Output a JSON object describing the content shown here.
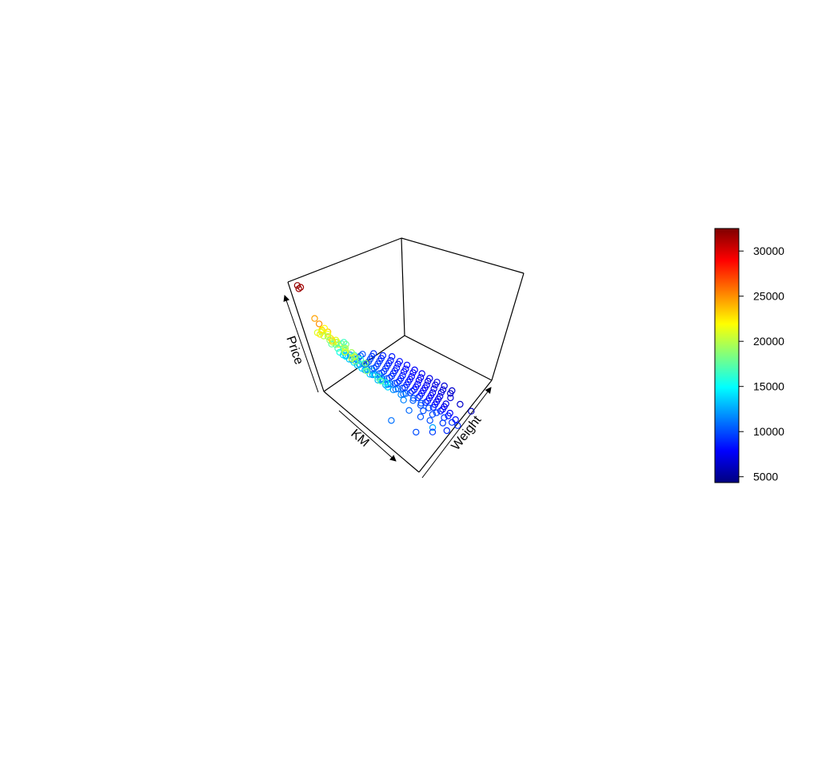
{
  "chart_data": {
    "type": "scatter",
    "projection": "3d-box",
    "axes": {
      "x": {
        "label": "KM"
      },
      "y": {
        "label": "Weight"
      },
      "z": {
        "label": "Price"
      }
    },
    "colorbar": {
      "palette": "jet",
      "colors": [
        "#00007f",
        "#0000ff",
        "#007fff",
        "#00ffff",
        "#7fff7f",
        "#ffff00",
        "#ff7f00",
        "#ff0000",
        "#7f0000"
      ],
      "range": [
        4350,
        32500
      ],
      "ticks": [
        5000,
        10000,
        15000,
        20000,
        25000,
        30000
      ],
      "tick_labels": [
        "5000",
        "10000",
        "15000",
        "20000",
        "25000",
        "30000"
      ],
      "placement": "right"
    },
    "points": [
      [
        0.05,
        0.05,
        0.98
      ],
      [
        0.06,
        0.07,
        0.96
      ],
      [
        0.07,
        0.04,
        0.97
      ],
      [
        0.1,
        0.08,
        0.7
      ],
      [
        0.14,
        0.08,
        0.68
      ],
      [
        0.18,
        0.06,
        0.66
      ],
      [
        0.2,
        0.1,
        0.64
      ],
      [
        0.24,
        0.08,
        0.62
      ],
      [
        0.12,
        0.1,
        0.6
      ],
      [
        0.16,
        0.12,
        0.58
      ],
      [
        0.22,
        0.14,
        0.56
      ],
      [
        0.26,
        0.12,
        0.58
      ],
      [
        0.3,
        0.1,
        0.6
      ],
      [
        0.08,
        0.12,
        0.54
      ],
      [
        0.12,
        0.14,
        0.52
      ],
      [
        0.18,
        0.16,
        0.5
      ],
      [
        0.24,
        0.18,
        0.48
      ],
      [
        0.28,
        0.16,
        0.5
      ],
      [
        0.34,
        0.2,
        0.46
      ],
      [
        0.38,
        0.18,
        0.44
      ],
      [
        0.42,
        0.22,
        0.42
      ],
      [
        0.1,
        0.16,
        0.46
      ],
      [
        0.14,
        0.18,
        0.44
      ],
      [
        0.2,
        0.2,
        0.42
      ],
      [
        0.26,
        0.22,
        0.4
      ],
      [
        0.3,
        0.24,
        0.38
      ],
      [
        0.36,
        0.26,
        0.36
      ],
      [
        0.4,
        0.28,
        0.34
      ],
      [
        0.46,
        0.3,
        0.32
      ],
      [
        0.06,
        0.14,
        0.48
      ],
      [
        0.08,
        0.18,
        0.4
      ],
      [
        0.12,
        0.2,
        0.38
      ],
      [
        0.16,
        0.22,
        0.36
      ],
      [
        0.22,
        0.24,
        0.34
      ],
      [
        0.28,
        0.26,
        0.32
      ],
      [
        0.32,
        0.28,
        0.3
      ],
      [
        0.38,
        0.3,
        0.28
      ],
      [
        0.44,
        0.32,
        0.26
      ],
      [
        0.48,
        0.34,
        0.25
      ],
      [
        0.52,
        0.3,
        0.27
      ],
      [
        0.1,
        0.22,
        0.32
      ],
      [
        0.14,
        0.24,
        0.3
      ],
      [
        0.2,
        0.26,
        0.28
      ],
      [
        0.26,
        0.28,
        0.26
      ],
      [
        0.32,
        0.3,
        0.24
      ],
      [
        0.38,
        0.32,
        0.22
      ],
      [
        0.44,
        0.34,
        0.21
      ],
      [
        0.5,
        0.36,
        0.2
      ],
      [
        0.56,
        0.38,
        0.19
      ],
      [
        0.6,
        0.36,
        0.18
      ],
      [
        0.08,
        0.26,
        0.26
      ],
      [
        0.12,
        0.28,
        0.24
      ],
      [
        0.18,
        0.3,
        0.22
      ],
      [
        0.24,
        0.32,
        0.21
      ],
      [
        0.3,
        0.34,
        0.2
      ],
      [
        0.36,
        0.36,
        0.19
      ],
      [
        0.42,
        0.38,
        0.18
      ],
      [
        0.48,
        0.4,
        0.17
      ],
      [
        0.54,
        0.42,
        0.16
      ],
      [
        0.62,
        0.44,
        0.15
      ],
      [
        0.68,
        0.46,
        0.14
      ],
      [
        0.72,
        0.44,
        0.13
      ],
      [
        0.78,
        0.48,
        0.12
      ],
      [
        0.06,
        0.3,
        0.22
      ],
      [
        0.1,
        0.32,
        0.2
      ],
      [
        0.16,
        0.34,
        0.19
      ],
      [
        0.22,
        0.36,
        0.18
      ],
      [
        0.28,
        0.38,
        0.17
      ],
      [
        0.34,
        0.4,
        0.16
      ],
      [
        0.4,
        0.42,
        0.15
      ],
      [
        0.46,
        0.44,
        0.14
      ],
      [
        0.52,
        0.46,
        0.13
      ],
      [
        0.58,
        0.48,
        0.12
      ],
      [
        0.64,
        0.5,
        0.11
      ],
      [
        0.7,
        0.52,
        0.1
      ],
      [
        0.76,
        0.54,
        0.09
      ],
      [
        0.82,
        0.56,
        0.08
      ],
      [
        0.88,
        0.58,
        0.07
      ],
      [
        0.92,
        0.6,
        0.06
      ],
      [
        0.86,
        0.5,
        0.09
      ],
      [
        0.8,
        0.42,
        0.11
      ],
      [
        0.74,
        0.38,
        0.12
      ],
      [
        0.66,
        0.34,
        0.14
      ],
      [
        0.04,
        0.36,
        0.18
      ],
      [
        0.08,
        0.38,
        0.16
      ],
      [
        0.14,
        0.4,
        0.15
      ],
      [
        0.2,
        0.42,
        0.14
      ],
      [
        0.26,
        0.44,
        0.13
      ],
      [
        0.32,
        0.46,
        0.12
      ],
      [
        0.38,
        0.48,
        0.11
      ],
      [
        0.44,
        0.5,
        0.1
      ],
      [
        0.5,
        0.52,
        0.09
      ],
      [
        0.56,
        0.54,
        0.08
      ],
      [
        0.62,
        0.56,
        0.07
      ],
      [
        0.68,
        0.58,
        0.06
      ],
      [
        0.74,
        0.6,
        0.06
      ],
      [
        0.8,
        0.62,
        0.05
      ],
      [
        0.86,
        0.64,
        0.05
      ],
      [
        0.06,
        0.42,
        0.14
      ],
      [
        0.12,
        0.44,
        0.12
      ],
      [
        0.18,
        0.46,
        0.11
      ],
      [
        0.24,
        0.48,
        0.1
      ],
      [
        0.3,
        0.5,
        0.09
      ],
      [
        0.36,
        0.52,
        0.08
      ],
      [
        0.42,
        0.54,
        0.07
      ],
      [
        0.48,
        0.56,
        0.07
      ],
      [
        0.54,
        0.58,
        0.06
      ],
      [
        0.6,
        0.6,
        0.05
      ],
      [
        0.66,
        0.62,
        0.05
      ],
      [
        0.72,
        0.64,
        0.04
      ],
      [
        0.78,
        0.66,
        0.04
      ],
      [
        0.04,
        0.46,
        0.12
      ],
      [
        0.1,
        0.48,
        0.1
      ],
      [
        0.16,
        0.5,
        0.09
      ],
      [
        0.22,
        0.52,
        0.08
      ],
      [
        0.28,
        0.54,
        0.07
      ],
      [
        0.34,
        0.56,
        0.06
      ],
      [
        0.4,
        0.58,
        0.06
      ],
      [
        0.46,
        0.6,
        0.05
      ],
      [
        0.52,
        0.62,
        0.05
      ],
      [
        0.58,
        0.64,
        0.04
      ],
      [
        0.64,
        0.66,
        0.04
      ],
      [
        0.7,
        0.68,
        0.03
      ],
      [
        0.02,
        0.5,
        0.1
      ],
      [
        0.08,
        0.52,
        0.09
      ],
      [
        0.14,
        0.54,
        0.08
      ],
      [
        0.2,
        0.56,
        0.07
      ],
      [
        0.26,
        0.58,
        0.06
      ],
      [
        0.32,
        0.6,
        0.05
      ],
      [
        0.38,
        0.62,
        0.05
      ],
      [
        0.44,
        0.64,
        0.04
      ],
      [
        0.5,
        0.66,
        0.04
      ],
      [
        0.56,
        0.68,
        0.03
      ],
      [
        0.62,
        0.7,
        0.03
      ],
      [
        0.68,
        0.72,
        0.02
      ],
      [
        0.06,
        0.56,
        0.08
      ],
      [
        0.12,
        0.58,
        0.07
      ],
      [
        0.18,
        0.6,
        0.06
      ],
      [
        0.24,
        0.62,
        0.05
      ],
      [
        0.3,
        0.64,
        0.04
      ],
      [
        0.36,
        0.66,
        0.04
      ],
      [
        0.42,
        0.68,
        0.03
      ],
      [
        0.48,
        0.7,
        0.03
      ],
      [
        0.54,
        0.72,
        0.02
      ],
      [
        0.6,
        0.74,
        0.02
      ],
      [
        0.04,
        0.6,
        0.07
      ],
      [
        0.1,
        0.62,
        0.06
      ],
      [
        0.16,
        0.64,
        0.05
      ],
      [
        0.22,
        0.66,
        0.04
      ],
      [
        0.28,
        0.68,
        0.04
      ],
      [
        0.34,
        0.7,
        0.03
      ],
      [
        0.4,
        0.72,
        0.03
      ],
      [
        0.46,
        0.74,
        0.02
      ],
      [
        0.52,
        0.76,
        0.02
      ],
      [
        0.58,
        0.78,
        0.02
      ],
      [
        0.66,
        0.8,
        0.02
      ],
      [
        0.74,
        0.82,
        0.01
      ],
      [
        0.84,
        0.84,
        0.01
      ],
      [
        0.08,
        0.66,
        0.05
      ],
      [
        0.14,
        0.68,
        0.04
      ],
      [
        0.2,
        0.7,
        0.04
      ],
      [
        0.26,
        0.72,
        0.03
      ],
      [
        0.32,
        0.74,
        0.03
      ],
      [
        0.38,
        0.76,
        0.02
      ],
      [
        0.44,
        0.78,
        0.02
      ],
      [
        0.5,
        0.8,
        0.02
      ],
      [
        0.56,
        0.82,
        0.01
      ],
      [
        0.62,
        0.84,
        0.01
      ],
      [
        0.12,
        0.72,
        0.04
      ],
      [
        0.18,
        0.74,
        0.03
      ],
      [
        0.24,
        0.76,
        0.03
      ],
      [
        0.3,
        0.78,
        0.02
      ],
      [
        0.36,
        0.8,
        0.02
      ],
      [
        0.42,
        0.82,
        0.01
      ],
      [
        0.48,
        0.84,
        0.01
      ],
      [
        0.54,
        0.86,
        0.01
      ],
      [
        0.6,
        0.88,
        0.0
      ],
      [
        0.2,
        0.2,
        0.48
      ],
      [
        0.3,
        0.22,
        0.44
      ],
      [
        0.36,
        0.16,
        0.54
      ],
      [
        0.44,
        0.12,
        0.58
      ],
      [
        0.48,
        0.18,
        0.52
      ],
      [
        0.22,
        0.1,
        0.56
      ],
      [
        0.18,
        0.24,
        0.46
      ],
      [
        0.26,
        0.2,
        0.52
      ],
      [
        0.34,
        0.24,
        0.42
      ],
      [
        0.4,
        0.14,
        0.5
      ],
      [
        0.14,
        0.12,
        0.62
      ],
      [
        0.28,
        0.06,
        0.64
      ],
      [
        0.32,
        0.14,
        0.56
      ],
      [
        0.1,
        0.06,
        0.58
      ],
      [
        0.16,
        0.04,
        0.62
      ],
      [
        0.38,
        0.08,
        0.6
      ],
      [
        0.42,
        0.1,
        0.56
      ],
      [
        0.52,
        0.14,
        0.5
      ],
      [
        0.56,
        0.2,
        0.44
      ],
      [
        0.6,
        0.24,
        0.4
      ],
      [
        0.62,
        0.18,
        0.46
      ],
      [
        0.98,
        0.3,
        0.24
      ],
      [
        0.7,
        0.1,
        0.2
      ],
      [
        0.86,
        0.2,
        0.16
      ],
      [
        0.9,
        0.34,
        0.12
      ],
      [
        0.94,
        0.46,
        0.1
      ]
    ],
    "price_values": [
      32000,
      31500,
      31800,
      24500,
      25000,
      24000,
      23500,
      22800,
      22500,
      21800,
      21000,
      21500,
      22000,
      20500,
      20000,
      19500,
      19000,
      19200,
      18500,
      18000,
      17500,
      19000,
      18500,
      18000,
      17500,
      17000,
      16500,
      16000,
      15500,
      20000,
      17500,
      17000,
      16500,
      16000,
      15500,
      15000,
      14500,
      14000,
      13500,
      14000,
      15500,
      15000,
      14500,
      14000,
      13500,
      13000,
      12500,
      12000,
      11800,
      11500,
      14000,
      13500,
      13000,
      12500,
      12000,
      11800,
      11500,
      11000,
      10800,
      10500,
      10200,
      10000,
      9800,
      13000,
      12500,
      12200,
      12000,
      11800,
      11500,
      11200,
      11000,
      10800,
      10500,
      10200,
      10000,
      9800,
      9500,
      9200,
      9000,
      9500,
      10000,
      10200,
      10800,
      12000,
      11500,
      11200,
      11000,
      10800,
      10500,
      10200,
      10000,
      9800,
      9500,
      9200,
      9000,
      8800,
      8500,
      8200,
      11000,
      10500,
      10200,
      10000,
      9800,
      9500,
      9200,
      9000,
      8800,
      8500,
      8200,
      8000,
      7800,
      10500,
      10000,
      9800,
      9500,
      9200,
      9000,
      8800,
      8500,
      8200,
      8000,
      7800,
      7500,
      10000,
      9800,
      9500,
      9200,
      9000,
      8800,
      8500,
      8200,
      8000,
      7800,
      7500,
      7200,
      9500,
      9200,
      9000,
      8800,
      8500,
      8200,
      8000,
      7800,
      7500,
      7200,
      9200,
      9000,
      8800,
      8500,
      8200,
      8000,
      7800,
      7500,
      7200,
      7000,
      6800,
      6500,
      6000,
      8800,
      8500,
      8200,
      8000,
      7800,
      7500,
      7200,
      7000,
      6800,
      6500,
      8500,
      8200,
      8000,
      7800,
      7500,
      7200,
      7000,
      6800,
      6500,
      17500,
      16500,
      19500,
      21000,
      18500,
      20500,
      16500,
      18000,
      16000,
      18500,
      22000,
      23000,
      20000,
      21000,
      22500,
      21500,
      20500,
      18500,
      16500,
      15500,
      17500,
      12500,
      11000,
      10000,
      9500,
      9000
    ]
  }
}
